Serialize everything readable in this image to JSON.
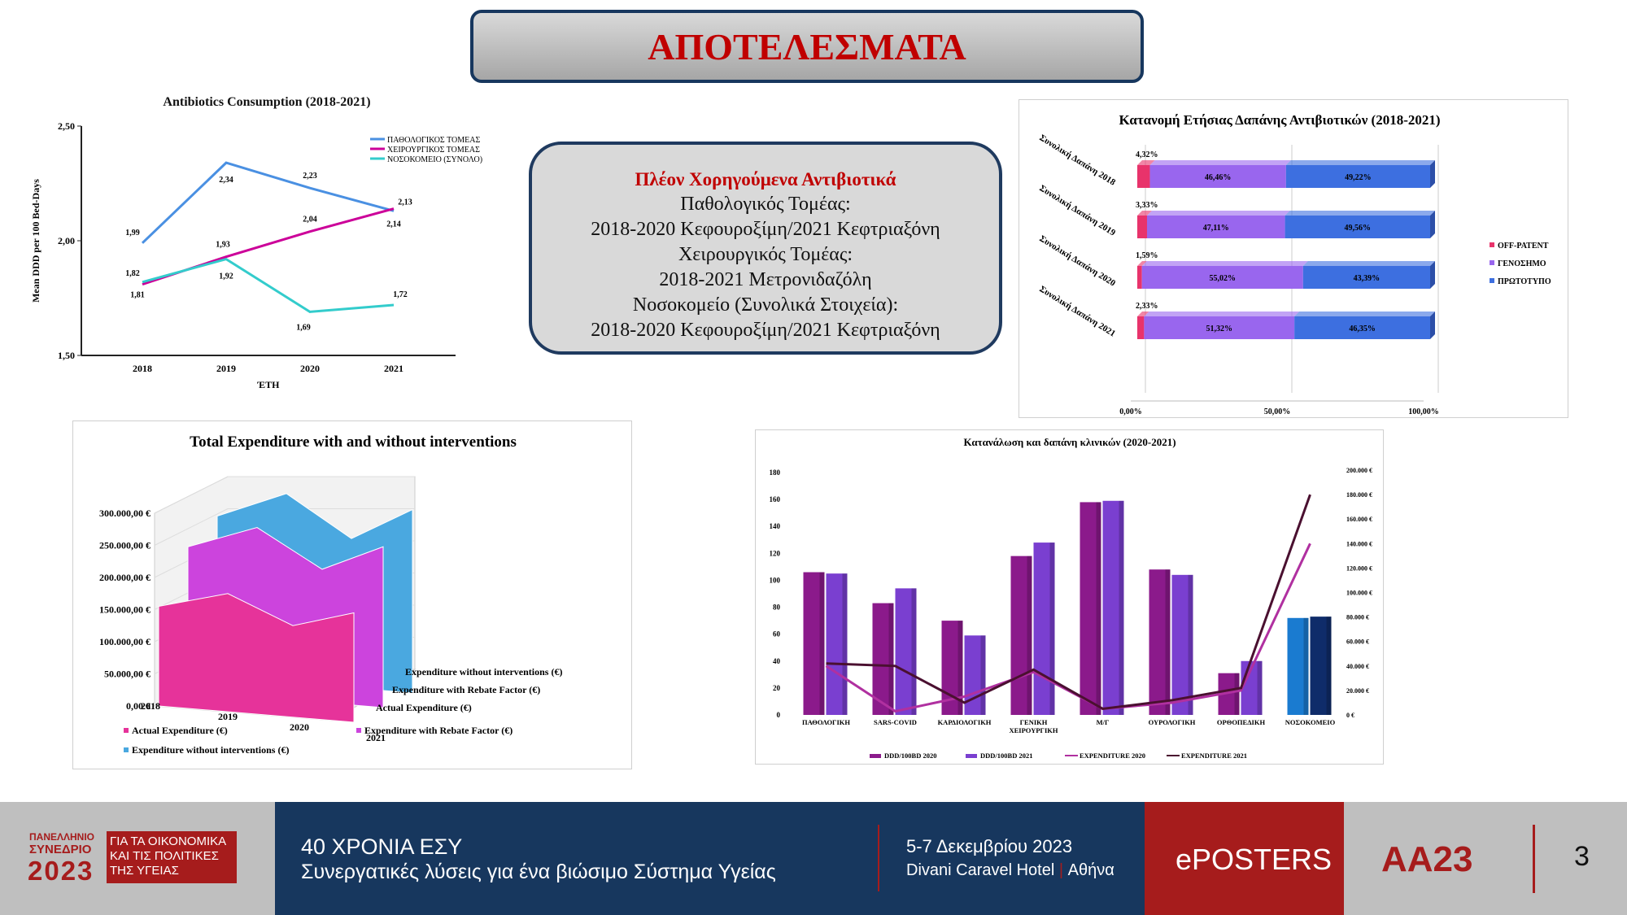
{
  "header": {
    "title": "ΑΠΟΤΕΛΕΣΜΑΤΑ"
  },
  "info_box": {
    "heading": "Πλέον Χορηγούμενα Αντιβιοτικά",
    "lines": [
      "Παθολογικός Τομέας:",
      "2018-2020 Κεφουροξίμη/2021 Κεφτριαξόνη",
      "Χειρουργικός Τομέας:",
      "2018-2021 Μετρονιδαζόλη",
      "Νοσοκομείο (Συνολικά Στοιχεία):",
      "2018-2020 Κεφουροξίμη/2021 Κεφτριαξόνη"
    ]
  },
  "chart_data": [
    {
      "type": "line",
      "title": "Antibiotics Consumption (2018-2021)",
      "xlabel": "ΈΤΗ",
      "ylabel": "Mean DDD per 100 Bed-Days",
      "x": [
        "2018",
        "2019",
        "2020",
        "2021"
      ],
      "ylim": [
        1.5,
        2.5
      ],
      "yticks": [
        "1,50",
        "2,00",
        "2,50"
      ],
      "legend_position": "top-right",
      "series": [
        {
          "name": "ΠΑΘΟΛΟΓΙΚΟΣ ΤΟΜΕΑΣ",
          "values": [
            1.99,
            2.34,
            2.23,
            2.13
          ],
          "labels": [
            "1,99",
            "2,34",
            "2,23",
            "2,13"
          ],
          "color": "#4a90e2"
        },
        {
          "name": "ΧΕΙΡΟΥΡΓΙΚΟΣ ΤΟΜΕΑΣ",
          "values": [
            1.81,
            1.93,
            2.04,
            2.14
          ],
          "labels": [
            "1,81",
            "1,93",
            "2,04",
            "2,14"
          ],
          "color": "#cc0099"
        },
        {
          "name": "ΝΟΣΟΚΟΜΕΙΟ (ΣΥΝΟΛΟ)",
          "values": [
            1.82,
            1.92,
            1.69,
            1.72
          ],
          "labels": [
            "1,82",
            "1,92",
            "1,69",
            "1,72"
          ],
          "color": "#33cccc"
        }
      ]
    },
    {
      "type": "bar",
      "orientation": "horizontal-stacked-100",
      "title": "Κατανομή Ετήσιας Δαπάνης Αντιβιοτικών  (2018-2021)",
      "categories": [
        "Συνολική Δαπάνη 2018",
        "Συνολική Δαπάνη 2019",
        "Συνολική Δαπάνη 2020",
        "Συνολική Δαπάνη 2021"
      ],
      "xticks": [
        "0,00%",
        "50,00%",
        "100,00%"
      ],
      "legend_position": "right",
      "series": [
        {
          "name": "OFF-PATENT",
          "values": [
            4.32,
            3.33,
            1.59,
            2.33
          ],
          "labels": [
            "4,32%",
            "3,33%",
            "1,59%",
            "2,33%"
          ],
          "color": "#e8336b"
        },
        {
          "name": "ΓΕΝΟΣΗΜΟ",
          "values": [
            46.46,
            47.11,
            55.02,
            51.32
          ],
          "labels": [
            "46,46%",
            "47,11%",
            "55,02%",
            "51,32%"
          ],
          "color": "#9966ee"
        },
        {
          "name": "ΠΡΩΤΟΤΥΠΟ",
          "values": [
            49.22,
            49.56,
            43.39,
            46.35
          ],
          "labels": [
            "49,22%",
            "49,56%",
            "43,39%",
            "46,35%"
          ],
          "color": "#3d6fe0"
        }
      ]
    },
    {
      "type": "area",
      "title": "Total Expenditure with and without interventions",
      "x": [
        "2018",
        "2019",
        "2020",
        "2021"
      ],
      "ylim": [
        0,
        300000
      ],
      "yticks": [
        "0,00 €",
        "50.000,00 €",
        "100.000,00 €",
        "150.000,00 €",
        "200.000,00 €",
        "250.000,00 €",
        "300.000,00 €"
      ],
      "legend_position": "bottom",
      "series": [
        {
          "name": "Actual Expenditure  (€)",
          "values": [
            155000,
            175000,
            125000,
            145000
          ],
          "color": "#e6339a"
        },
        {
          "name": "Expenditure with Rebate Factor (€)",
          "values": [
            225000,
            255000,
            190000,
            225000
          ],
          "color": "#cc44dd"
        },
        {
          "name": "Expenditure without interventions (€)",
          "values": [
            250000,
            285000,
            215000,
            260000
          ],
          "color": "#4aa8e0"
        }
      ]
    },
    {
      "type": "bar",
      "title": "Κατανάλωση και δαπάνη κλινικών (2020-2021)",
      "categories": [
        "ΠΑΘΟΛΟΓΙΚΗ",
        "SARS-COVID",
        "ΚΑΡΔΙΟΛΟΓΙΚΗ",
        "ΓΕΝΙΚΗ ΧΕΙΡΟΥΡΓΙΚΗ",
        "Μ/Γ",
        "ΟΥΡΟΛΟΓΙΚΗ",
        "ΟΡΘΟΠΕΔΙΚΗ",
        "ΝΟΣΟΚΟΜΕΙΟ"
      ],
      "ylim": [
        0,
        180
      ],
      "yticks": [
        "0",
        "20",
        "40",
        "60",
        "80",
        "100",
        "120",
        "140",
        "160",
        "180"
      ],
      "y2lim": [
        0,
        200000
      ],
      "y2ticks": [
        "0 €",
        "20.000 €",
        "40.000 €",
        "60.000 €",
        "80.000 €",
        "100.000 €",
        "120.000 €",
        "140.000 €",
        "160.000 €",
        "180.000 €",
        "200.000 €"
      ],
      "legend_position": "bottom",
      "series": [
        {
          "name": "DDD/100BD 2020",
          "values": [
            106,
            83,
            70,
            118,
            158,
            108,
            31,
            72
          ],
          "color": "#8b1a8b"
        },
        {
          "name": "DDD/100BD 2021",
          "values": [
            105,
            94,
            59,
            128,
            159,
            104,
            40,
            73
          ],
          "color": "#7a3fd0"
        },
        {
          "name": "EXPENDITURE 2020",
          "values": [
            40000,
            3000,
            15000,
            35000,
            5000,
            10000,
            20000,
            140000
          ],
          "color": "#b030a0",
          "axis": "y2"
        },
        {
          "name": "EXPENDITURE 2021",
          "values": [
            42000,
            40000,
            10000,
            37000,
            5000,
            12000,
            22000,
            180000
          ],
          "color": "#4a1030",
          "axis": "y2"
        }
      ]
    }
  ],
  "footer": {
    "org_line1": "ΠΑΝΕΛΛΗΝΙΟ",
    "org_line2": "ΣΥΝΕΔΡΙΟ",
    "org_year": "2023",
    "org_tag1": "ΓΙΑ ΤΑ ΟΙΚΟΝΟΜΙΚΑ",
    "org_tag2": "ΚΑΙ ΤΙΣ ΠΟΛΙΤΙΚΕΣ",
    "org_tag3": "ΤΗΣ ΥΓΕΙΑΣ",
    "event_title": "40 ΧΡΟΝΙΑ ΕΣΥ",
    "event_subtitle": "Συνεργατικές λύσεις για ένα βιώσιμο Σύστημα Υγείας",
    "date": "5-7 Δεκεμβρίου 2023",
    "venue": "Divani Caravel Hotel",
    "city": "Αθήνα",
    "eposters": "ePOSTERS",
    "code": "ΑΑ23",
    "page": "3",
    "colors": {
      "red": "#a61c1c",
      "navy": "#17375e",
      "grey": "#bfbfbf"
    }
  }
}
